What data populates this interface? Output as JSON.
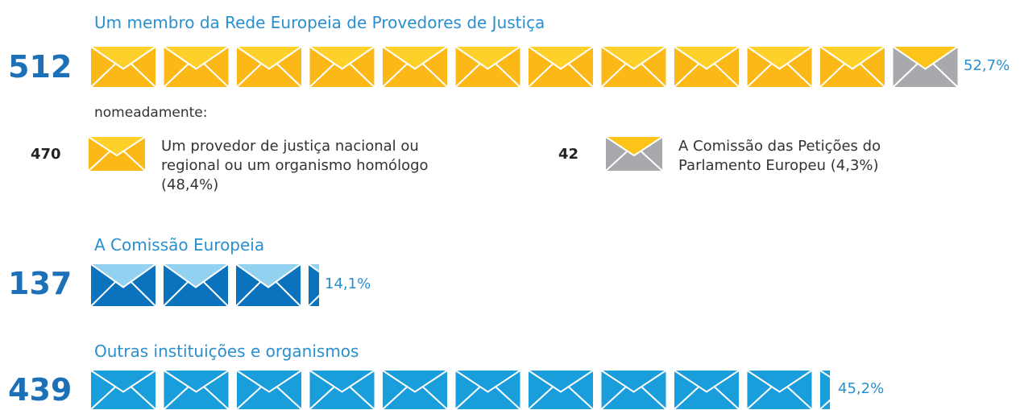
{
  "sections": [
    {
      "title": "Um membro da Rede Europeia de Provedores de Justiça",
      "count": "512",
      "percent": "52,7%",
      "note": "nomeadamente:",
      "items": [
        {
          "count": "470",
          "label": "Um provedor de justiça nacional ou regional ou um organismo homólogo (48,4%)"
        },
        {
          "count": "42",
          "label": "A Comissão das Petições do Parlamento Europeu (4,3%)"
        }
      ]
    },
    {
      "title": "A Comissão Europeia",
      "count": "137",
      "percent": "14,1%"
    },
    {
      "title": "Outras instituições e organismos",
      "count": "439",
      "percent": "45,2%"
    }
  ]
}
